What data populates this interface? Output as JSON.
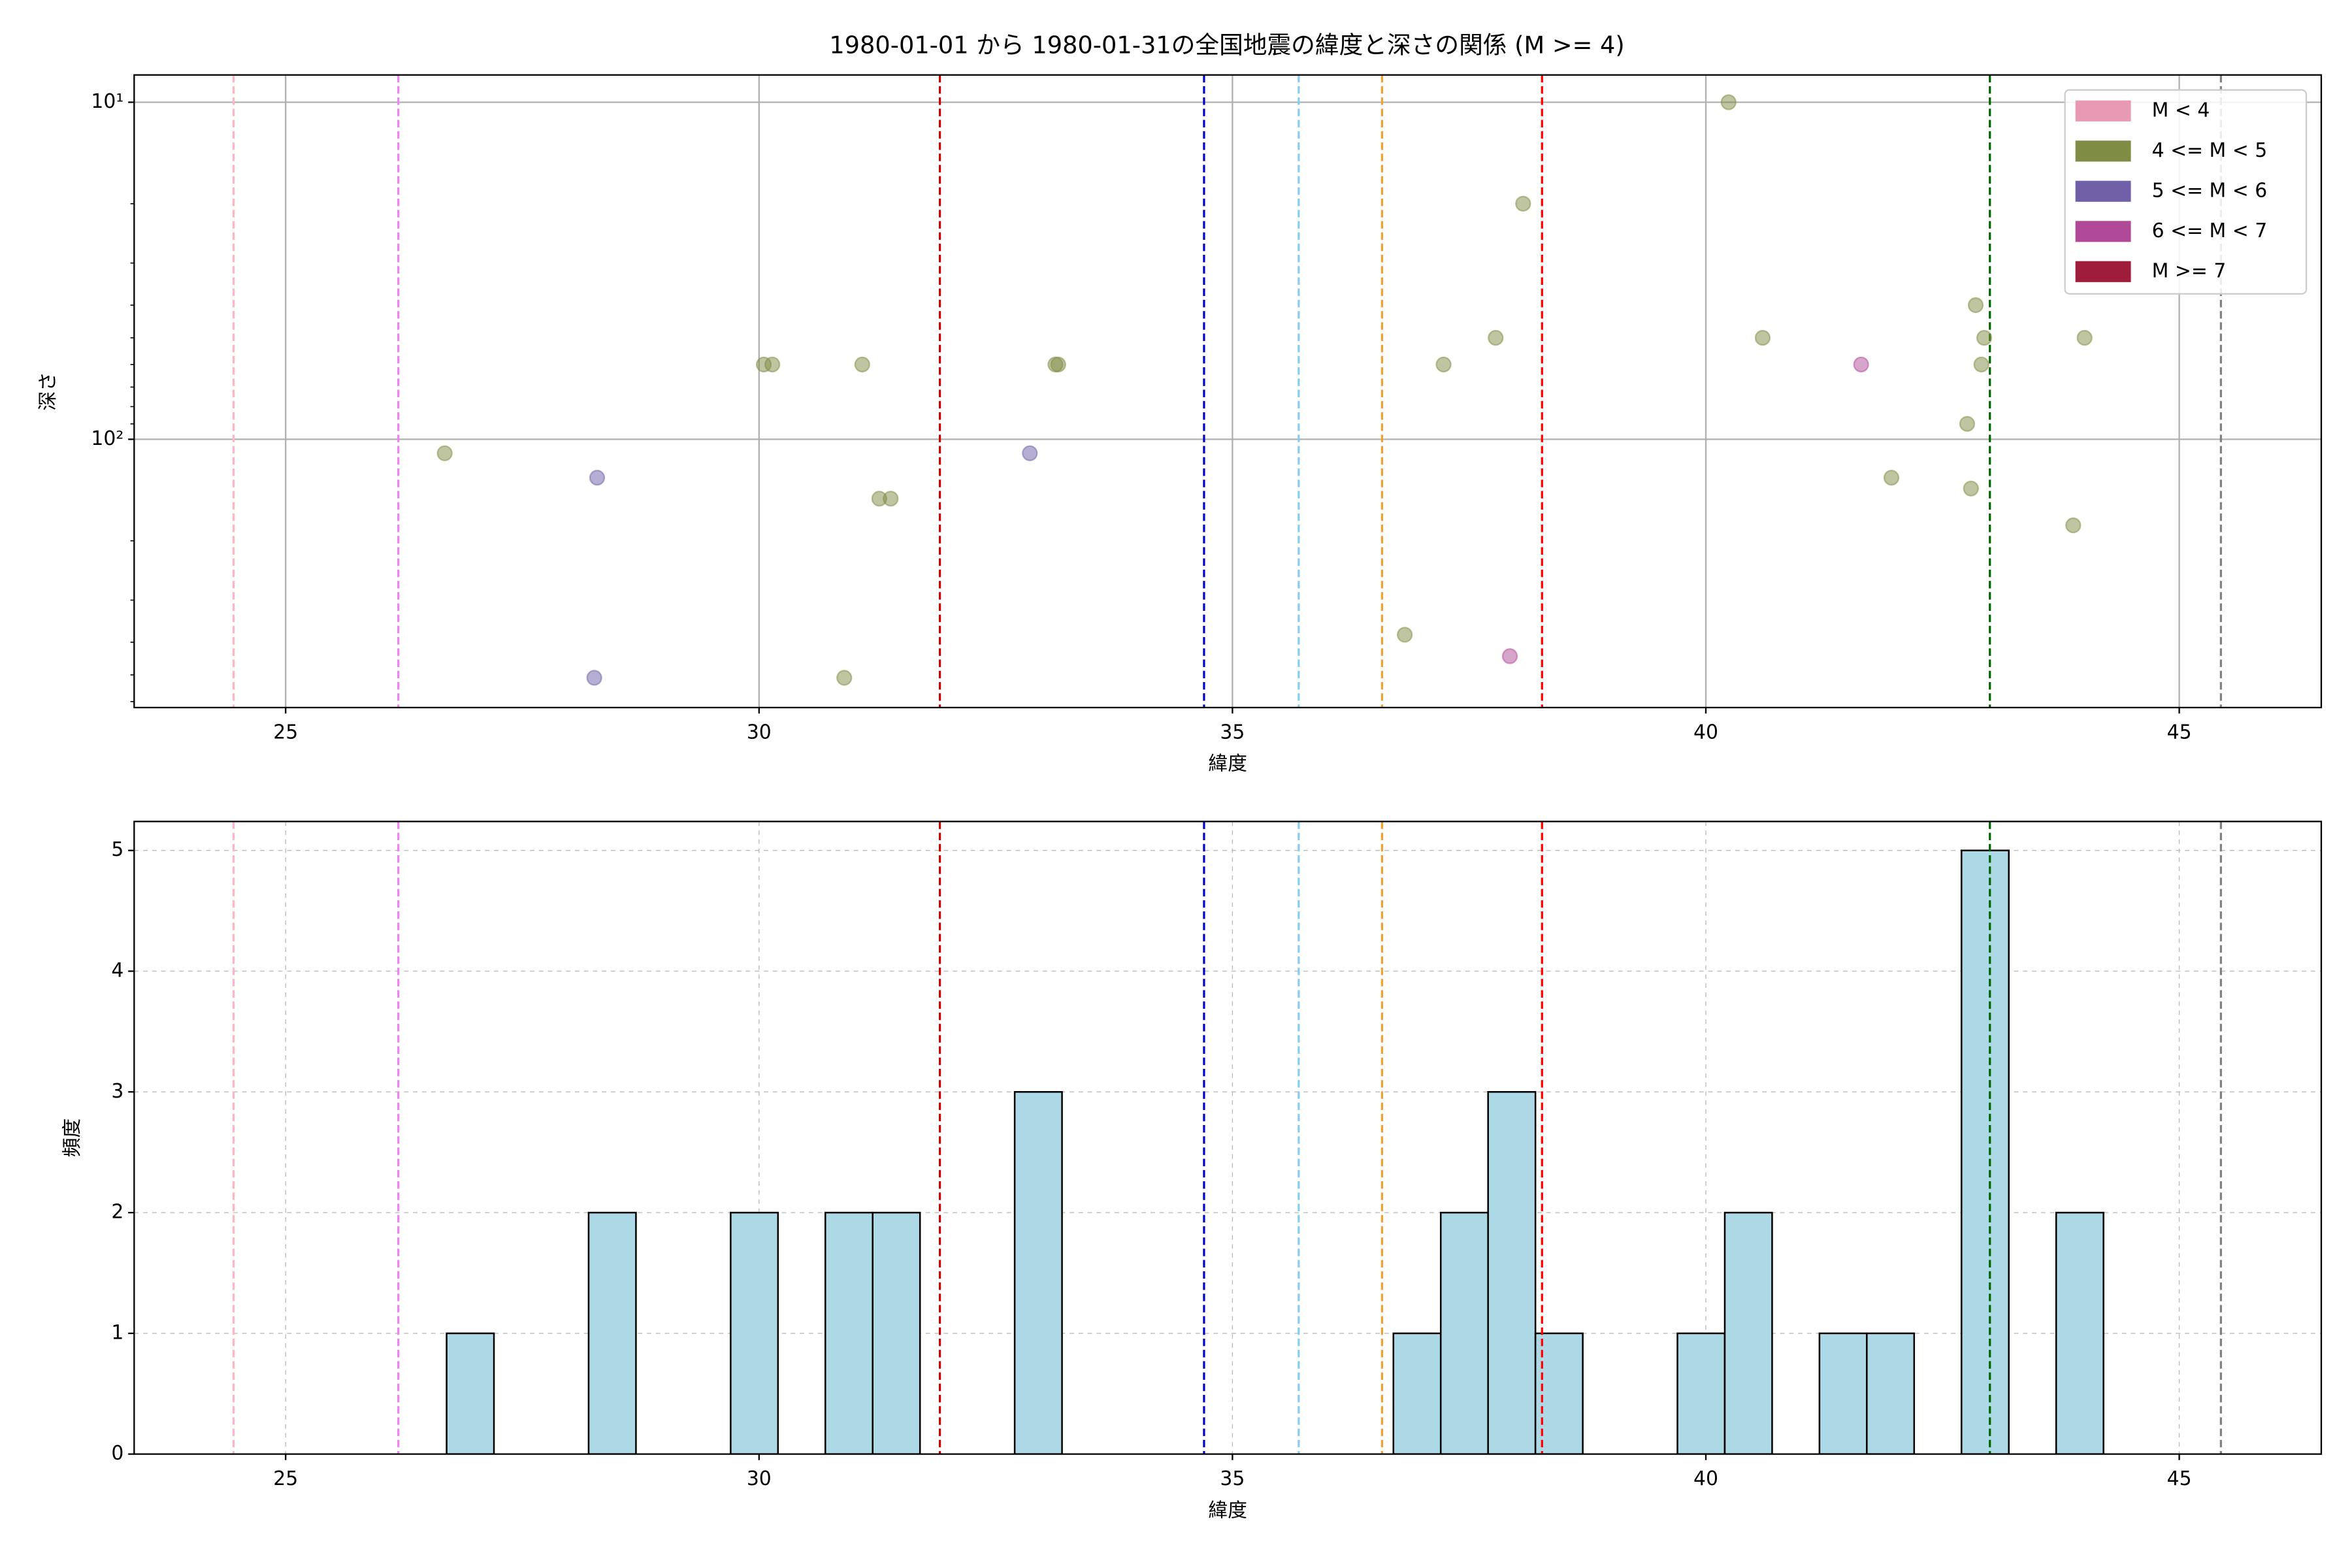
{
  "chart_data": [
    {
      "type": "scatter",
      "title": "1980-01-01 から 1980-01-31の全国地震の緯度と深さの関係 (M >= 4)",
      "xlabel": "緯度",
      "ylabel": "深さ",
      "xlim": [
        23.4,
        46.5
      ],
      "xticks": [
        25,
        30,
        35,
        40,
        45
      ],
      "ylim": [
        625,
        8.3
      ],
      "ylog": true,
      "yticks": [
        {
          "value": 10,
          "label": "10¹"
        },
        {
          "value": 100,
          "label": "10²"
        }
      ],
      "yminor": [
        20,
        30,
        40,
        50,
        60,
        70,
        80,
        90,
        200,
        300,
        400,
        500,
        600
      ],
      "grid": true,
      "grid_style": "solid",
      "legend": "upper right",
      "alpha": 0.5,
      "series": [
        {
          "name": "M < 4",
          "color": "#e89ab5",
          "x": [],
          "values": []
        },
        {
          "name": "4 <= M < 5",
          "color": "#7f8c44",
          "x": [
            40.24,
            38.07,
            37.78,
            37.23,
            40.6,
            42.85,
            42.94,
            42.91,
            44.0,
            42.76,
            41.96,
            42.8,
            43.88,
            36.82,
            26.68,
            30.05,
            30.14,
            31.09,
            31.27,
            31.39,
            30.9,
            33.13,
            33.16
          ],
          "values": [
            10,
            20,
            50,
            60,
            50,
            40,
            50,
            60,
            50,
            90,
            130,
            140,
            180,
            380,
            110,
            60,
            60,
            60,
            150,
            150,
            510,
            60,
            60
          ]
        },
        {
          "name": "5 <= M < 6",
          "color": "#7060a8",
          "x": [
            28.29,
            28.26,
            32.86
          ],
          "values": [
            130,
            510,
            110
          ]
        },
        {
          "name": "6 <= M < 7",
          "color": "#b04a98",
          "x": [
            41.64,
            37.93
          ],
          "values": [
            60,
            440
          ]
        },
        {
          "name": "M >= 7",
          "color": "#a01c3c",
          "x": [],
          "values": []
        }
      ],
      "vlines": [
        {
          "x": 24.45,
          "color": "#ffb6c1"
        },
        {
          "x": 26.19,
          "color": "#ee82ee"
        },
        {
          "x": 31.91,
          "color": "#cc0000"
        },
        {
          "x": 34.7,
          "color": "#0000cc"
        },
        {
          "x": 35.7,
          "color": "#87ceeb"
        },
        {
          "x": 36.58,
          "color": "#f0a030"
        },
        {
          "x": 38.27,
          "color": "#ff0000"
        },
        {
          "x": 43.0,
          "color": "#006400"
        },
        {
          "x": 45.44,
          "color": "#808080"
        }
      ]
    },
    {
      "type": "histogram",
      "xlabel": "緯度",
      "ylabel": "頻度",
      "xlim": [
        23.4,
        46.5
      ],
      "xticks": [
        25,
        30,
        35,
        40,
        45
      ],
      "ylim": [
        0,
        5.24
      ],
      "yticks": [
        0,
        1,
        2,
        3,
        4,
        5
      ],
      "grid": true,
      "grid_style": "dashed",
      "color": "#add8e6",
      "edgecolor": "#000000",
      "bins": [
        26.7,
        27.2,
        27.7,
        28.2,
        28.7,
        29.2,
        29.7,
        30.2,
        30.7,
        31.2,
        31.7,
        32.2,
        32.7,
        33.2,
        33.7,
        34.2,
        34.7,
        35.2,
        35.7,
        36.2,
        36.7,
        37.2,
        37.7,
        38.2,
        38.7,
        39.2,
        39.7,
        40.2,
        40.7,
        41.2,
        41.7,
        42.2,
        42.7,
        43.2,
        43.7,
        44.2
      ],
      "values": [
        1,
        0,
        0,
        2,
        0,
        0,
        2,
        0,
        2,
        2,
        0,
        0,
        3,
        0,
        0,
        0,
        0,
        0,
        0,
        0,
        1,
        2,
        3,
        1,
        0,
        0,
        1,
        2,
        0,
        1,
        1,
        0,
        5,
        0,
        2
      ],
      "vlines": [
        {
          "x": 24.45,
          "color": "#ffb6c1"
        },
        {
          "x": 26.19,
          "color": "#ee82ee"
        },
        {
          "x": 31.91,
          "color": "#cc0000"
        },
        {
          "x": 34.7,
          "color": "#0000cc"
        },
        {
          "x": 35.7,
          "color": "#87ceeb"
        },
        {
          "x": 36.58,
          "color": "#f0a030"
        },
        {
          "x": 38.27,
          "color": "#ff0000"
        },
        {
          "x": 43.0,
          "color": "#006400"
        },
        {
          "x": 45.44,
          "color": "#808080"
        }
      ]
    }
  ]
}
